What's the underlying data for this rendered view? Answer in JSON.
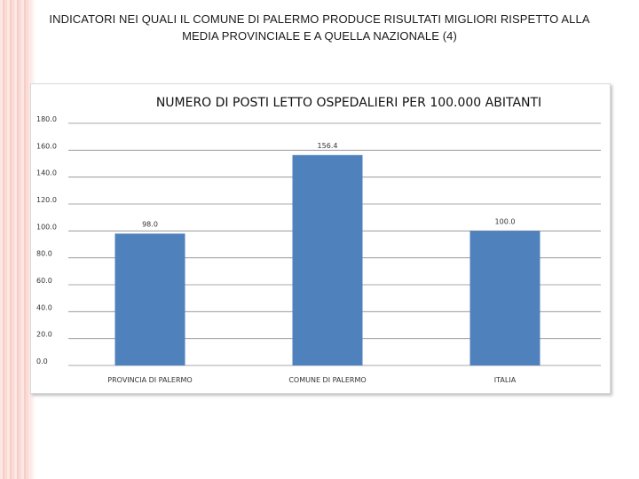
{
  "slide": {
    "title_line1": "INDICATORI NEI QUALI IL COMUNE DI PALERMO PRODUCE RISULTATI MIGLIORI RISPETTO ALLA",
    "title_line2": "MEDIA PROVINCIALE E A QUELLA NAZIONALE (4)"
  },
  "colors": {
    "bar": "#4f81bd",
    "grid": "#8c8c8c",
    "accent_stripes": "#f7c9c1"
  },
  "chart_data": {
    "type": "bar",
    "title": "NUMERO DI POSTI LETTO OSPEDALIERI PER 100.000 ABITANTI",
    "categories": [
      "PROVINCIA DI PALERMO",
      "COMUNE DI PALERMO",
      "ITALIA"
    ],
    "values": [
      98.0,
      156.4,
      100.0
    ],
    "value_labels": [
      "98.0",
      "156.4",
      "100.0"
    ],
    "xlabel": "",
    "ylabel": "",
    "ylim": [
      0,
      180
    ],
    "yticks": [
      0,
      20,
      40,
      60,
      80,
      100,
      120,
      140,
      160,
      180
    ],
    "ytick_labels": [
      "0.0",
      "20.0",
      "40.0",
      "60.0",
      "80.0",
      "100.0",
      "120.0",
      "140.0",
      "160.0",
      "180.0"
    ],
    "grid": true,
    "legend": "none"
  }
}
